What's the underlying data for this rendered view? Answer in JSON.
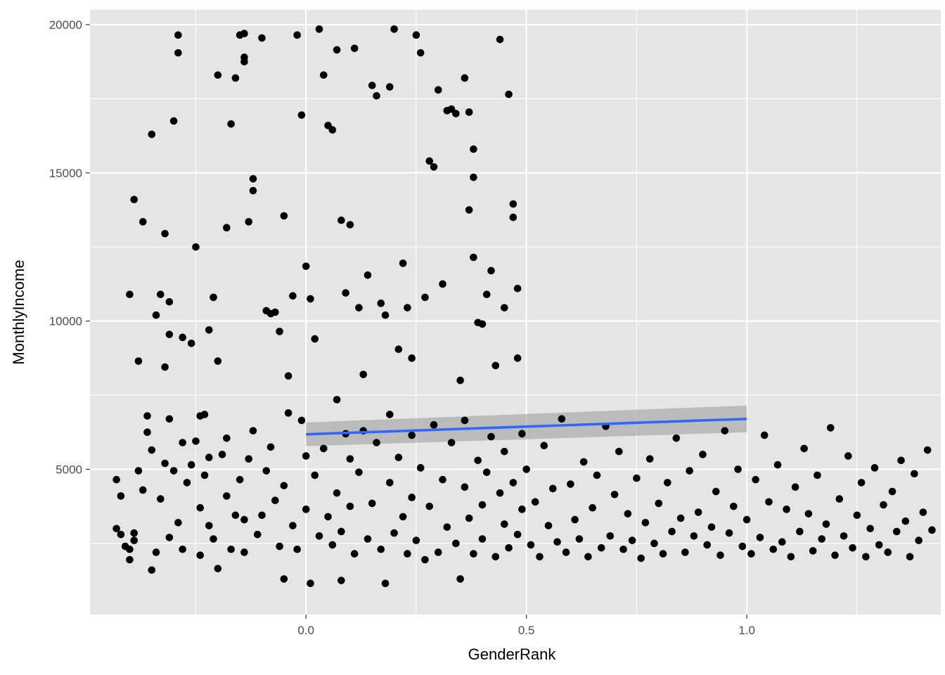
{
  "chart_data": {
    "type": "scatter",
    "title": "",
    "xlabel": "GenderRank",
    "ylabel": "MonthlyIncome",
    "xlim": [
      -0.49,
      1.44
    ],
    "ylim": [
      100,
      20500
    ],
    "x_ticks": [
      0.0,
      0.5,
      1.0
    ],
    "x_tick_labels": [
      "0.0",
      "0.5",
      "1.0"
    ],
    "y_ticks": [
      5000,
      10000,
      15000,
      20000
    ],
    "y_tick_labels": [
      "5000",
      "10000",
      "15000",
      "20000"
    ],
    "grid": true,
    "background": "#e5e5e5",
    "grid_color": "#ffffff",
    "point_color": "#000000",
    "series": [
      {
        "values": [
          [
            -0.4,
            10900
          ],
          [
            -0.39,
            14100
          ],
          [
            -0.38,
            8650
          ],
          [
            -0.37,
            13350
          ],
          [
            -0.36,
            6250
          ],
          [
            -0.35,
            16300
          ],
          [
            -0.34,
            10200
          ],
          [
            -0.33,
            10900
          ],
          [
            -0.32,
            12950
          ],
          [
            -0.31,
            10650
          ],
          [
            -0.31,
            9550
          ],
          [
            -0.32,
            8450
          ],
          [
            -0.3,
            16750
          ],
          [
            -0.29,
            19650
          ],
          [
            -0.29,
            19050
          ],
          [
            -0.28,
            9450
          ],
          [
            -0.26,
            9250
          ],
          [
            -0.25,
            12500
          ],
          [
            -0.24,
            6800
          ],
          [
            -0.23,
            6850
          ],
          [
            -0.22,
            9700
          ],
          [
            -0.21,
            10800
          ],
          [
            -0.2,
            8650
          ],
          [
            -0.2,
            18300
          ],
          [
            -0.18,
            13150
          ],
          [
            -0.17,
            16650
          ],
          [
            -0.16,
            18200
          ],
          [
            -0.15,
            19650
          ],
          [
            -0.14,
            19700
          ],
          [
            -0.14,
            18900
          ],
          [
            -0.14,
            18750
          ],
          [
            -0.13,
            13350
          ],
          [
            -0.12,
            14800
          ],
          [
            -0.12,
            14400
          ],
          [
            -0.1,
            19550
          ],
          [
            -0.09,
            10350
          ],
          [
            -0.08,
            10250
          ],
          [
            -0.07,
            10300
          ],
          [
            -0.06,
            9650
          ],
          [
            -0.05,
            13550
          ],
          [
            -0.04,
            8150
          ],
          [
            -0.03,
            10850
          ],
          [
            -0.02,
            19650
          ],
          [
            -0.01,
            16950
          ],
          [
            0.0,
            11850
          ],
          [
            0.01,
            10750
          ],
          [
            0.02,
            9400
          ],
          [
            0.03,
            19850
          ],
          [
            0.04,
            18300
          ],
          [
            0.05,
            16600
          ],
          [
            0.06,
            16450
          ],
          [
            0.07,
            19150
          ],
          [
            0.08,
            13400
          ],
          [
            0.09,
            10950
          ],
          [
            0.1,
            13250
          ],
          [
            0.11,
            19200
          ],
          [
            0.12,
            10450
          ],
          [
            0.13,
            8200
          ],
          [
            0.14,
            11550
          ],
          [
            0.15,
            17950
          ],
          [
            0.16,
            17600
          ],
          [
            0.17,
            10600
          ],
          [
            0.18,
            10200
          ],
          [
            0.19,
            17900
          ],
          [
            0.2,
            19850
          ],
          [
            0.21,
            9050
          ],
          [
            0.22,
            11950
          ],
          [
            0.23,
            10450
          ],
          [
            0.24,
            8750
          ],
          [
            0.25,
            19650
          ],
          [
            0.26,
            19050
          ],
          [
            0.27,
            10800
          ],
          [
            0.28,
            15400
          ],
          [
            0.29,
            15200
          ],
          [
            0.3,
            17800
          ],
          [
            0.31,
            11250
          ],
          [
            0.32,
            17100
          ],
          [
            0.33,
            17150
          ],
          [
            0.34,
            17000
          ],
          [
            0.35,
            8000
          ],
          [
            0.36,
            18200
          ],
          [
            0.37,
            17050
          ],
          [
            0.37,
            13750
          ],
          [
            0.38,
            15800
          ],
          [
            0.38,
            14850
          ],
          [
            0.38,
            12150
          ],
          [
            0.39,
            9950
          ],
          [
            0.4,
            9900
          ],
          [
            0.41,
            10900
          ],
          [
            0.42,
            11700
          ],
          [
            0.43,
            8500
          ],
          [
            0.44,
            19500
          ],
          [
            0.45,
            10450
          ],
          [
            0.46,
            17650
          ],
          [
            0.47,
            13950
          ],
          [
            0.47,
            13500
          ],
          [
            0.48,
            11100
          ],
          [
            0.48,
            8750
          ],
          [
            -0.43,
            4650
          ],
          [
            -0.43,
            3000
          ],
          [
            -0.42,
            2800
          ],
          [
            -0.42,
            4100
          ],
          [
            -0.41,
            2400
          ],
          [
            -0.4,
            2300
          ],
          [
            -0.4,
            1950
          ],
          [
            -0.39,
            2850
          ],
          [
            -0.39,
            2600
          ],
          [
            -0.38,
            4950
          ],
          [
            -0.37,
            4300
          ],
          [
            -0.36,
            6800
          ],
          [
            -0.35,
            5650
          ],
          [
            -0.35,
            1600
          ],
          [
            -0.34,
            2200
          ],
          [
            -0.33,
            4000
          ],
          [
            -0.32,
            5200
          ],
          [
            -0.31,
            6700
          ],
          [
            -0.31,
            2700
          ],
          [
            -0.3,
            4950
          ],
          [
            -0.29,
            3200
          ],
          [
            -0.28,
            5900
          ],
          [
            -0.28,
            2300
          ],
          [
            -0.27,
            4550
          ],
          [
            -0.26,
            5150
          ],
          [
            -0.25,
            5950
          ],
          [
            -0.24,
            3700
          ],
          [
            -0.24,
            2100
          ],
          [
            -0.23,
            4800
          ],
          [
            -0.22,
            5400
          ],
          [
            -0.22,
            3100
          ],
          [
            -0.21,
            2650
          ],
          [
            -0.2,
            1650
          ],
          [
            -0.19,
            5500
          ],
          [
            -0.18,
            6050
          ],
          [
            -0.18,
            4100
          ],
          [
            -0.17,
            2300
          ],
          [
            -0.16,
            3450
          ],
          [
            -0.15,
            4650
          ],
          [
            -0.14,
            3300
          ],
          [
            -0.14,
            2200
          ],
          [
            -0.13,
            5350
          ],
          [
            -0.12,
            6300
          ],
          [
            -0.11,
            2800
          ],
          [
            -0.1,
            3450
          ],
          [
            -0.09,
            4950
          ],
          [
            -0.08,
            5750
          ],
          [
            -0.07,
            3950
          ],
          [
            -0.06,
            2400
          ],
          [
            -0.05,
            1300
          ],
          [
            -0.05,
            4450
          ],
          [
            -0.04,
            6900
          ],
          [
            -0.03,
            3100
          ],
          [
            -0.02,
            2300
          ],
          [
            -0.01,
            6650
          ],
          [
            0.0,
            5450
          ],
          [
            0.0,
            3650
          ],
          [
            0.01,
            1150
          ],
          [
            0.02,
            4800
          ],
          [
            0.03,
            2750
          ],
          [
            0.04,
            5700
          ],
          [
            0.05,
            3400
          ],
          [
            0.06,
            2450
          ],
          [
            0.07,
            7350
          ],
          [
            0.07,
            4200
          ],
          [
            0.08,
            1250
          ],
          [
            0.08,
            2900
          ],
          [
            0.09,
            6200
          ],
          [
            0.1,
            5350
          ],
          [
            0.1,
            3750
          ],
          [
            0.11,
            2150
          ],
          [
            0.12,
            4900
          ],
          [
            0.13,
            6300
          ],
          [
            0.14,
            2650
          ],
          [
            0.15,
            3850
          ],
          [
            0.16,
            5900
          ],
          [
            0.17,
            2300
          ],
          [
            0.18,
            1150
          ],
          [
            0.19,
            4550
          ],
          [
            0.19,
            6850
          ],
          [
            0.2,
            2850
          ],
          [
            0.21,
            5400
          ],
          [
            0.22,
            3400
          ],
          [
            0.23,
            2150
          ],
          [
            0.24,
            4050
          ],
          [
            0.24,
            6150
          ],
          [
            0.25,
            2600
          ],
          [
            0.26,
            5050
          ],
          [
            0.27,
            1950
          ],
          [
            0.28,
            3750
          ],
          [
            0.29,
            6500
          ],
          [
            0.3,
            2200
          ],
          [
            0.31,
            4650
          ],
          [
            0.32,
            3050
          ],
          [
            0.33,
            5900
          ],
          [
            0.34,
            2500
          ],
          [
            0.35,
            1300
          ],
          [
            0.36,
            4400
          ],
          [
            0.36,
            6650
          ],
          [
            0.37,
            3350
          ],
          [
            0.38,
            2150
          ],
          [
            0.39,
            5300
          ],
          [
            0.4,
            3800
          ],
          [
            0.4,
            2650
          ],
          [
            0.41,
            4900
          ],
          [
            0.42,
            6100
          ],
          [
            0.43,
            2050
          ],
          [
            0.44,
            4200
          ],
          [
            0.45,
            3150
          ],
          [
            0.45,
            5600
          ],
          [
            0.46,
            2350
          ],
          [
            0.47,
            4550
          ],
          [
            0.48,
            2800
          ],
          [
            0.49,
            6200
          ],
          [
            0.49,
            3650
          ],
          [
            0.5,
            5000
          ],
          [
            0.51,
            2450
          ],
          [
            0.52,
            3900
          ],
          [
            0.53,
            2050
          ],
          [
            0.54,
            5800
          ],
          [
            0.55,
            3100
          ],
          [
            0.56,
            4350
          ],
          [
            0.57,
            2550
          ],
          [
            0.58,
            6700
          ],
          [
            0.59,
            2200
          ],
          [
            0.6,
            4500
          ],
          [
            0.61,
            3300
          ],
          [
            0.62,
            2650
          ],
          [
            0.63,
            5250
          ],
          [
            0.64,
            2050
          ],
          [
            0.65,
            3700
          ],
          [
            0.66,
            4800
          ],
          [
            0.67,
            2350
          ],
          [
            0.68,
            6450
          ],
          [
            0.69,
            2750
          ],
          [
            0.7,
            4150
          ],
          [
            0.71,
            5600
          ],
          [
            0.72,
            2300
          ],
          [
            0.73,
            3500
          ],
          [
            0.74,
            2600
          ],
          [
            0.75,
            4700
          ],
          [
            0.76,
            2000
          ],
          [
            0.77,
            3200
          ],
          [
            0.78,
            5350
          ],
          [
            0.79,
            2500
          ],
          [
            0.8,
            3850
          ],
          [
            0.81,
            2150
          ],
          [
            0.82,
            4550
          ],
          [
            0.83,
            2900
          ],
          [
            0.84,
            6050
          ],
          [
            0.85,
            3350
          ],
          [
            0.86,
            2200
          ],
          [
            0.87,
            4950
          ],
          [
            0.88,
            2750
          ],
          [
            0.89,
            3550
          ],
          [
            0.9,
            5500
          ],
          [
            0.91,
            2450
          ],
          [
            0.92,
            3050
          ],
          [
            0.93,
            4250
          ],
          [
            0.94,
            2100
          ],
          [
            0.95,
            6300
          ],
          [
            0.96,
            2850
          ],
          [
            0.97,
            3750
          ],
          [
            0.98,
            5000
          ],
          [
            0.99,
            2400
          ],
          [
            1.0,
            3300
          ],
          [
            1.01,
            2150
          ],
          [
            1.02,
            4650
          ],
          [
            1.03,
            2700
          ],
          [
            1.04,
            6150
          ],
          [
            1.05,
            3900
          ],
          [
            1.06,
            2300
          ],
          [
            1.07,
            5150
          ],
          [
            1.08,
            2550
          ],
          [
            1.09,
            3650
          ],
          [
            1.1,
            2050
          ],
          [
            1.11,
            4400
          ],
          [
            1.12,
            2900
          ],
          [
            1.13,
            5700
          ],
          [
            1.14,
            3500
          ],
          [
            1.15,
            2250
          ],
          [
            1.16,
            4800
          ],
          [
            1.17,
            2650
          ],
          [
            1.18,
            3150
          ],
          [
            1.19,
            6400
          ],
          [
            1.2,
            2100
          ],
          [
            1.21,
            4000
          ],
          [
            1.22,
            2750
          ],
          [
            1.23,
            5450
          ],
          [
            1.24,
            2350
          ],
          [
            1.25,
            3450
          ],
          [
            1.26,
            4550
          ],
          [
            1.27,
            2050
          ],
          [
            1.28,
            3000
          ],
          [
            1.29,
            5050
          ],
          [
            1.3,
            2450
          ],
          [
            1.31,
            3800
          ],
          [
            1.32,
            2200
          ],
          [
            1.33,
            4250
          ],
          [
            1.34,
            2900
          ],
          [
            1.35,
            5300
          ],
          [
            1.36,
            3250
          ],
          [
            1.37,
            2050
          ],
          [
            1.38,
            4850
          ],
          [
            1.39,
            2600
          ],
          [
            1.4,
            3550
          ],
          [
            1.41,
            5650
          ],
          [
            1.42,
            2950
          ]
        ]
      }
    ],
    "trend_line": {
      "method": "lm",
      "color": "#3366ff",
      "x_range": [
        0.0,
        1.0
      ],
      "y_start": 6180,
      "y_end": 6700,
      "band_lower": [
        5780,
        6250
      ],
      "band_upper": [
        6580,
        7150
      ],
      "band_color": "#999999"
    }
  }
}
